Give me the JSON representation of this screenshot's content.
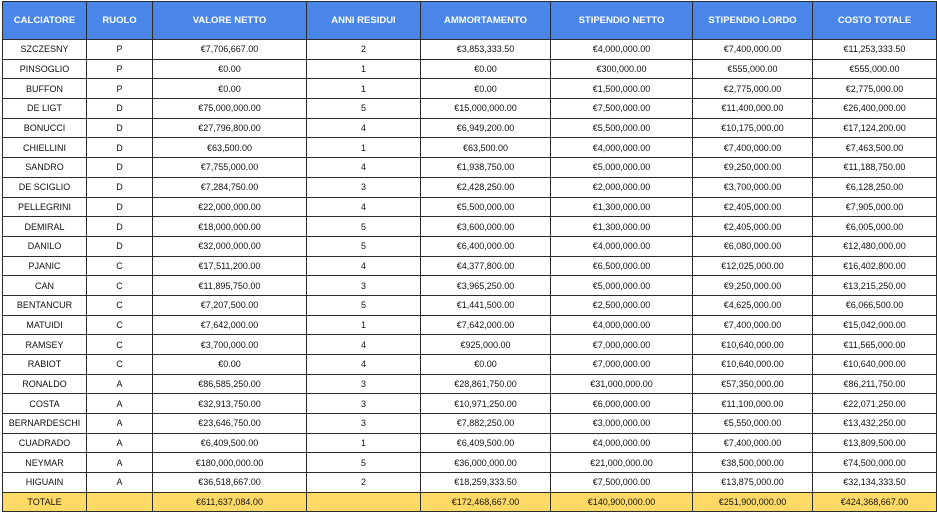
{
  "headers": [
    "CALCIATORE",
    "RUOLO",
    "VALORE NETTO",
    "ANNI RESIDUI",
    "AMMORTAMENTO",
    "STIPENDIO NETTO",
    "STIPENDIO LORDO",
    "COSTO TOTALE"
  ],
  "rows": [
    [
      "SZCZESNY",
      "P",
      "€7,706,667.00",
      "2",
      "€3,853,333.50",
      "€4,000,000.00",
      "€7,400,000.00",
      "€11,253,333.50"
    ],
    [
      "PINSOGLIO",
      "P",
      "€0.00",
      "1",
      "€0.00",
      "€300,000.00",
      "€555,000.00",
      "€555,000.00"
    ],
    [
      "BUFFON",
      "P",
      "€0.00",
      "1",
      "€0.00",
      "€1,500,000.00",
      "€2,775,000.00",
      "€2,775,000.00"
    ],
    [
      "DE LIGT",
      "D",
      "€75,000,000.00",
      "5",
      "€15,000,000.00",
      "€7,500,000.00",
      "€11,400,000.00",
      "€26,400,000.00"
    ],
    [
      "BONUCCI",
      "D",
      "€27,796,800.00",
      "4",
      "€6,949,200.00",
      "€5,500,000.00",
      "€10,175,000.00",
      "€17,124,200.00"
    ],
    [
      "CHIELLINI",
      "D",
      "€63,500.00",
      "1",
      "€63,500.00",
      "€4,000,000.00",
      "€7,400,000.00",
      "€7,463,500.00"
    ],
    [
      "SANDRO",
      "D",
      "€7,755,000.00",
      "4",
      "€1,938,750.00",
      "€5,000,000.00",
      "€9,250,000.00",
      "€11,188,750.00"
    ],
    [
      "DE SCIGLIO",
      "D",
      "€7,284,750.00",
      "3",
      "€2,428,250.00",
      "€2,000,000.00",
      "€3,700,000.00",
      "€6,128,250.00"
    ],
    [
      "PELLEGRINI",
      "D",
      "€22,000,000.00",
      "4",
      "€5,500,000.00",
      "€1,300,000.00",
      "€2,405,000.00",
      "€7,905,000.00"
    ],
    [
      "DEMIRAL",
      "D",
      "€18,000,000.00",
      "5",
      "€3,600,000.00",
      "€1,300,000.00",
      "€2,405,000.00",
      "€6,005,000.00"
    ],
    [
      "DANILO",
      "D",
      "€32,000,000.00",
      "5",
      "€6,400,000.00",
      "€4,000,000.00",
      "€6,080,000.00",
      "€12,480,000.00"
    ],
    [
      "PJANIC",
      "C",
      "€17,511,200.00",
      "4",
      "€4,377,800.00",
      "€6,500,000.00",
      "€12,025,000.00",
      "€16,402,800.00"
    ],
    [
      "CAN",
      "C",
      "€11,895,750.00",
      "3",
      "€3,965,250.00",
      "€5,000,000.00",
      "€9,250,000.00",
      "€13,215,250.00"
    ],
    [
      "BENTANCUR",
      "C",
      "€7,207,500.00",
      "5",
      "€1,441,500.00",
      "€2,500,000.00",
      "€4,625,000.00",
      "€6,066,500.00"
    ],
    [
      "MATUIDI",
      "C",
      "€7,642,000.00",
      "1",
      "€7,642,000.00",
      "€4,000,000.00",
      "€7,400,000.00",
      "€15,042,000.00"
    ],
    [
      "RAMSEY",
      "C",
      "€3,700,000.00",
      "4",
      "€925,000.00",
      "€7,000,000.00",
      "€10,640,000.00",
      "€11,565,000.00"
    ],
    [
      "RABIOT",
      "C",
      "€0.00",
      "4",
      "€0.00",
      "€7,000,000.00",
      "€10,640,000.00",
      "€10,640,000.00"
    ],
    [
      "RONALDO",
      "A",
      "€86,585,250.00",
      "3",
      "€28,861,750.00",
      "€31,000,000.00",
      "€57,350,000.00",
      "€86,211,750.00"
    ],
    [
      "COSTA",
      "A",
      "€32,913,750.00",
      "3",
      "€10,971,250.00",
      "€6,000,000.00",
      "€11,100,000.00",
      "€22,071,250.00"
    ],
    [
      "BERNARDESCHI",
      "A",
      "€23,646,750.00",
      "3",
      "€7,882,250.00",
      "€3,000,000.00",
      "€5,550,000.00",
      "€13,432,250.00"
    ],
    [
      "CUADRADO",
      "A",
      "€6,409,500.00",
      "1",
      "€6,409,500.00",
      "€4,000,000.00",
      "€7,400,000.00",
      "€13,809,500.00"
    ],
    [
      "NEYMAR",
      "A",
      "€180,000,000.00",
      "5",
      "€36,000,000.00",
      "€21,000,000.00",
      "€38,500,000.00",
      "€74,500,000.00"
    ],
    [
      "HIGUAIN",
      "A",
      "€36,518,667.00",
      "2",
      "€18,259,333.50",
      "€7,500,000.00",
      "€13,875,000.00",
      "€32,134,333.50"
    ]
  ],
  "total": [
    "TOTALE",
    "",
    "€611,637,084.00",
    "",
    "€172,468,667.00",
    "€140,900,000.00",
    "€251,900,000.00",
    "€424,368,667.00"
  ],
  "colors": {
    "header_bg": "#4a86e8",
    "header_text": "#ffffff",
    "total_bg": "#ffd966"
  }
}
